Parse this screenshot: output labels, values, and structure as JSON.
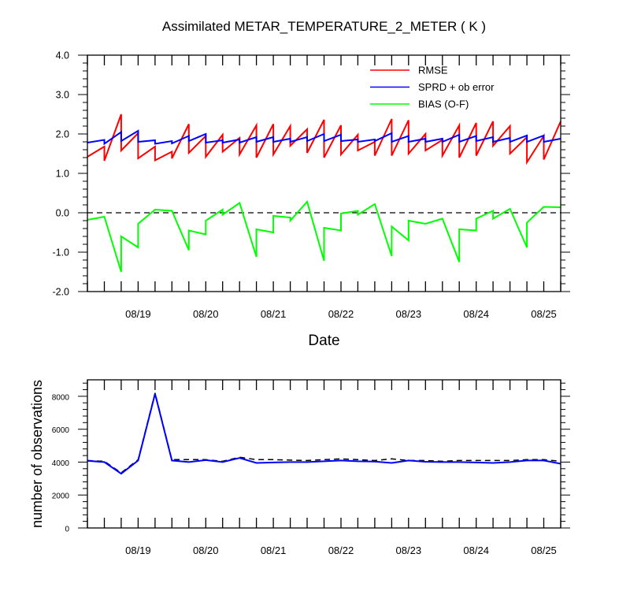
{
  "chart_data": [
    {
      "type": "line",
      "title": "Assimilated METAR_TEMPERATURE_2_METER ( K )",
      "xlabel": "Date",
      "ylabel": "",
      "ylim": [
        -2.0,
        4.0
      ],
      "xlim": [
        "08/18 06:00",
        "08/25 06:00"
      ],
      "ytick_labels": [
        "-2.0",
        "-1.0",
        "0.0",
        "1.0",
        "2.0",
        "3.0",
        "4.0"
      ],
      "ytick_values": [
        -2,
        -1,
        0,
        1,
        2,
        3,
        4
      ],
      "xtick_labels": [
        "08/19",
        "08/20",
        "08/21",
        "08/22",
        "08/23",
        "08/24",
        "08/25"
      ],
      "xtick_values": [
        "08/19 00:00",
        "08/20 00:00",
        "08/21 00:00",
        "08/22 00:00",
        "08/23 00:00",
        "08/24 00:00",
        "08/25 00:00"
      ],
      "zero_line": {
        "y": 0,
        "style": "dashed"
      },
      "legend_position": "top-right",
      "series": [
        {
          "name": "RMSE",
          "color": "#ff0000",
          "points": [
            [
              "08/18 06:00",
              1.42
            ],
            [
              "08/18 12:00",
              1.68
            ],
            [
              "08/18 12:00",
              1.32
            ],
            [
              "08/18 18:00",
              2.5
            ],
            [
              "08/18 18:00",
              1.58
            ],
            [
              "08/19 00:00",
              2.02
            ],
            [
              "08/19 00:00",
              1.38
            ],
            [
              "08/19 06:00",
              1.68
            ],
            [
              "08/19 06:00",
              1.33
            ],
            [
              "08/19 12:00",
              1.55
            ],
            [
              "08/19 12:00",
              1.38
            ],
            [
              "08/19 18:00",
              2.25
            ],
            [
              "08/19 18:00",
              1.52
            ],
            [
              "08/20 00:00",
              1.95
            ],
            [
              "08/20 00:00",
              1.42
            ],
            [
              "08/20 06:00",
              1.98
            ],
            [
              "08/20 06:00",
              1.55
            ],
            [
              "08/20 12:00",
              1.9
            ],
            [
              "08/20 12:00",
              1.48
            ],
            [
              "08/20 18:00",
              2.22
            ],
            [
              "08/20 18:00",
              1.4
            ],
            [
              "08/21 00:00",
              2.25
            ],
            [
              "08/21 00:00",
              1.48
            ],
            [
              "08/21 06:00",
              2.2
            ],
            [
              "08/21 06:00",
              1.7
            ],
            [
              "08/21 12:00",
              2.12
            ],
            [
              "08/21 12:00",
              1.52
            ],
            [
              "08/21 18:00",
              2.36
            ],
            [
              "08/21 18:00",
              1.4
            ],
            [
              "08/22 00:00",
              2.22
            ],
            [
              "08/22 00:00",
              1.48
            ],
            [
              "08/22 06:00",
              1.98
            ],
            [
              "08/22 06:00",
              1.58
            ],
            [
              "08/22 12:00",
              1.8
            ],
            [
              "08/22 12:00",
              1.45
            ],
            [
              "08/22 18:00",
              2.38
            ],
            [
              "08/22 18:00",
              1.45
            ],
            [
              "08/23 00:00",
              2.35
            ],
            [
              "08/23 00:00",
              1.5
            ],
            [
              "08/23 06:00",
              2.0
            ],
            [
              "08/23 06:00",
              1.58
            ],
            [
              "08/23 12:00",
              1.85
            ],
            [
              "08/23 12:00",
              1.45
            ],
            [
              "08/23 18:00",
              2.22
            ],
            [
              "08/23 18:00",
              1.4
            ],
            [
              "08/24 00:00",
              2.28
            ],
            [
              "08/24 00:00",
              1.45
            ],
            [
              "08/24 06:00",
              2.32
            ],
            [
              "08/24 06:00",
              1.7
            ],
            [
              "08/24 12:00",
              2.2
            ],
            [
              "08/24 12:00",
              1.5
            ],
            [
              "08/24 18:00",
              1.92
            ],
            [
              "08/24 18:00",
              1.28
            ],
            [
              "08/25 00:00",
              1.95
            ],
            [
              "08/25 00:00",
              1.35
            ],
            [
              "08/25 06:00",
              2.32
            ]
          ]
        },
        {
          "name": "SPRD + ob error",
          "color": "#0000ff",
          "points": [
            [
              "08/18 06:00",
              1.78
            ],
            [
              "08/18 12:00",
              1.85
            ],
            [
              "08/18 12:00",
              1.75
            ],
            [
              "08/18 18:00",
              2.05
            ],
            [
              "08/18 18:00",
              1.82
            ],
            [
              "08/19 00:00",
              2.08
            ],
            [
              "08/19 00:00",
              1.8
            ],
            [
              "08/19 06:00",
              1.84
            ],
            [
              "08/19 06:00",
              1.75
            ],
            [
              "08/19 12:00",
              1.82
            ],
            [
              "08/19 12:00",
              1.76
            ],
            [
              "08/19 18:00",
              1.95
            ],
            [
              "08/19 18:00",
              1.82
            ],
            [
              "08/20 00:00",
              2.0
            ],
            [
              "08/20 00:00",
              1.78
            ],
            [
              "08/20 06:00",
              1.84
            ],
            [
              "08/20 06:00",
              1.78
            ],
            [
              "08/20 12:00",
              1.86
            ],
            [
              "08/20 12:00",
              1.78
            ],
            [
              "08/20 18:00",
              1.92
            ],
            [
              "08/20 18:00",
              1.8
            ],
            [
              "08/21 00:00",
              1.92
            ],
            [
              "08/21 00:00",
              1.8
            ],
            [
              "08/21 06:00",
              1.88
            ],
            [
              "08/21 06:00",
              1.8
            ],
            [
              "08/21 12:00",
              1.92
            ],
            [
              "08/21 12:00",
              1.82
            ],
            [
              "08/21 18:00",
              2.0
            ],
            [
              "08/21 18:00",
              1.82
            ],
            [
              "08/22 00:00",
              1.98
            ],
            [
              "08/22 00:00",
              1.82
            ],
            [
              "08/22 06:00",
              1.86
            ],
            [
              "08/22 06:00",
              1.8
            ],
            [
              "08/22 12:00",
              1.86
            ],
            [
              "08/22 12:00",
              1.82
            ],
            [
              "08/22 18:00",
              2.02
            ],
            [
              "08/22 18:00",
              1.8
            ],
            [
              "08/23 00:00",
              1.95
            ],
            [
              "08/23 00:00",
              1.8
            ],
            [
              "08/23 06:00",
              1.88
            ],
            [
              "08/23 06:00",
              1.8
            ],
            [
              "08/23 12:00",
              1.88
            ],
            [
              "08/23 12:00",
              1.8
            ],
            [
              "08/23 18:00",
              1.98
            ],
            [
              "08/23 18:00",
              1.8
            ],
            [
              "08/24 00:00",
              1.95
            ],
            [
              "08/24 00:00",
              1.82
            ],
            [
              "08/24 06:00",
              1.92
            ],
            [
              "08/24 06:00",
              1.8
            ],
            [
              "08/24 12:00",
              1.9
            ],
            [
              "08/24 12:00",
              1.8
            ],
            [
              "08/24 18:00",
              1.96
            ],
            [
              "08/24 18:00",
              1.8
            ],
            [
              "08/25 00:00",
              1.96
            ],
            [
              "08/25 00:00",
              1.8
            ],
            [
              "08/25 06:00",
              1.88
            ]
          ]
        },
        {
          "name": "BIAS (O-F)",
          "color": "#00ff00",
          "points": [
            [
              "08/18 06:00",
              -0.18
            ],
            [
              "08/18 12:00",
              -0.1
            ],
            [
              "08/18 18:00",
              -1.5
            ],
            [
              "08/18 18:00",
              -0.6
            ],
            [
              "08/19 00:00",
              -0.88
            ],
            [
              "08/19 00:00",
              -0.28
            ],
            [
              "08/19 06:00",
              0.08
            ],
            [
              "08/19 12:00",
              0.05
            ],
            [
              "08/19 18:00",
              -0.95
            ],
            [
              "08/19 18:00",
              -0.45
            ],
            [
              "08/20 00:00",
              -0.55
            ],
            [
              "08/20 00:00",
              -0.2
            ],
            [
              "08/20 06:00",
              0.08
            ],
            [
              "08/20 06:00",
              -0.05
            ],
            [
              "08/20 12:00",
              0.25
            ],
            [
              "08/20 18:00",
              -1.12
            ],
            [
              "08/20 18:00",
              -0.42
            ],
            [
              "08/21 00:00",
              -0.5
            ],
            [
              "08/21 00:00",
              -0.08
            ],
            [
              "08/21 06:00",
              -0.12
            ],
            [
              "08/21 06:00",
              -0.2
            ],
            [
              "08/21 12:00",
              0.28
            ],
            [
              "08/21 18:00",
              -1.22
            ],
            [
              "08/21 18:00",
              -0.38
            ],
            [
              "08/22 00:00",
              -0.45
            ],
            [
              "08/22 00:00",
              -0.02
            ],
            [
              "08/22 06:00",
              0.05
            ],
            [
              "08/22 06:00",
              -0.05
            ],
            [
              "08/22 12:00",
              0.22
            ],
            [
              "08/22 18:00",
              -1.1
            ],
            [
              "08/22 18:00",
              -0.35
            ],
            [
              "08/23 00:00",
              -0.7
            ],
            [
              "08/23 00:00",
              -0.2
            ],
            [
              "08/23 06:00",
              -0.28
            ],
            [
              "08/23 12:00",
              -0.15
            ],
            [
              "08/23 18:00",
              -1.25
            ],
            [
              "08/23 18:00",
              -0.42
            ],
            [
              "08/24 00:00",
              -0.45
            ],
            [
              "08/24 00:00",
              -0.15
            ],
            [
              "08/24 06:00",
              0.05
            ],
            [
              "08/24 06:00",
              -0.15
            ],
            [
              "08/24 12:00",
              0.1
            ],
            [
              "08/24 18:00",
              -0.88
            ],
            [
              "08/24 18:00",
              -0.25
            ],
            [
              "08/25 00:00",
              0.15
            ],
            [
              "08/25 06:00",
              0.14
            ]
          ]
        }
      ]
    },
    {
      "type": "line",
      "title": "",
      "xlabel": "",
      "ylabel": "number of observations",
      "ylim": [
        0,
        9000
      ],
      "xlim": [
        "08/18 06:00",
        "08/25 06:00"
      ],
      "ytick_labels": [
        "0",
        "2000",
        "4000",
        "6000",
        "8000"
      ],
      "ytick_values": [
        0,
        2000,
        4000,
        6000,
        8000
      ],
      "xtick_labels": [
        "08/19",
        "08/20",
        "08/21",
        "08/22",
        "08/23",
        "08/24",
        "08/25"
      ],
      "xtick_values": [
        "08/19 00:00",
        "08/20 00:00",
        "08/21 00:00",
        "08/22 00:00",
        "08/23 00:00",
        "08/24 00:00",
        "08/25 00:00"
      ],
      "series": [
        {
          "style": "dashed",
          "color": "#000000",
          "points": [
            [
              "08/18 06:00",
              4100
            ],
            [
              "08/18 12:00",
              4050
            ],
            [
              "08/18 18:00",
              3350
            ],
            [
              "08/19 00:00",
              4150
            ],
            [
              "08/19 06:00",
              8200
            ],
            [
              "08/19 12:00",
              4150
            ],
            [
              "08/19 18:00",
              4150
            ],
            [
              "08/20 00:00",
              4150
            ],
            [
              "08/20 06:00",
              4050
            ],
            [
              "08/20 12:00",
              4300
            ],
            [
              "08/20 18:00",
              4150
            ],
            [
              "08/21 00:00",
              4150
            ],
            [
              "08/21 06:00",
              4120
            ],
            [
              "08/21 12:00",
              4100
            ],
            [
              "08/21 18:00",
              4150
            ],
            [
              "08/22 00:00",
              4200
            ],
            [
              "08/22 06:00",
              4150
            ],
            [
              "08/22 12:00",
              4100
            ],
            [
              "08/22 18:00",
              4200
            ],
            [
              "08/23 00:00",
              4100
            ],
            [
              "08/23 06:00",
              4100
            ],
            [
              "08/23 12:00",
              4050
            ],
            [
              "08/23 18:00",
              4100
            ],
            [
              "08/24 00:00",
              4100
            ],
            [
              "08/24 06:00",
              4100
            ],
            [
              "08/24 12:00",
              4100
            ],
            [
              "08/24 18:00",
              4150
            ],
            [
              "08/25 00:00",
              4150
            ],
            [
              "08/25 06:00",
              4050
            ]
          ]
        },
        {
          "style": "solid",
          "color": "#0000ff",
          "points": [
            [
              "08/18 06:00",
              4080
            ],
            [
              "08/18 12:00",
              4000
            ],
            [
              "08/18 18:00",
              3300
            ],
            [
              "08/19 00:00",
              4100
            ],
            [
              "08/19 06:00",
              8150
            ],
            [
              "08/19 12:00",
              4100
            ],
            [
              "08/19 18:00",
              4000
            ],
            [
              "08/20 00:00",
              4120
            ],
            [
              "08/20 06:00",
              4000
            ],
            [
              "08/20 12:00",
              4250
            ],
            [
              "08/20 18:00",
              3950
            ],
            [
              "08/21 00:00",
              3980
            ],
            [
              "08/21 06:00",
              4000
            ],
            [
              "08/21 12:00",
              4000
            ],
            [
              "08/21 18:00",
              4050
            ],
            [
              "08/22 00:00",
              4100
            ],
            [
              "08/22 06:00",
              4050
            ],
            [
              "08/22 12:00",
              4030
            ],
            [
              "08/22 18:00",
              3950
            ],
            [
              "08/23 00:00",
              4100
            ],
            [
              "08/23 06:00",
              4020
            ],
            [
              "08/23 12:00",
              4000
            ],
            [
              "08/23 18:00",
              4000
            ],
            [
              "08/24 00:00",
              3980
            ],
            [
              "08/24 06:00",
              3950
            ],
            [
              "08/24 12:00",
              4000
            ],
            [
              "08/24 18:00",
              4100
            ],
            [
              "08/25 00:00",
              4100
            ],
            [
              "08/25 06:00",
              3900
            ]
          ]
        }
      ]
    }
  ]
}
